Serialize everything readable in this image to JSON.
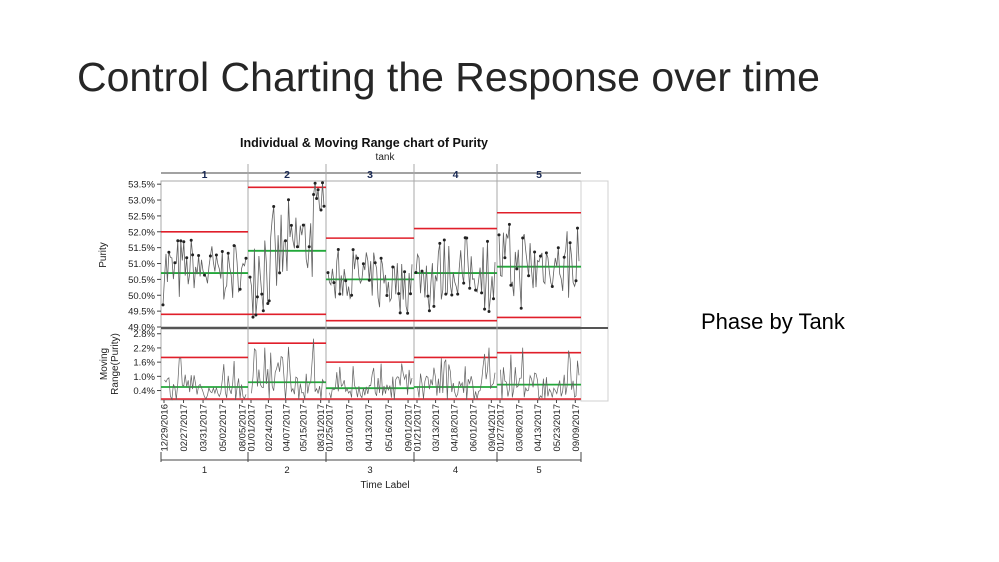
{
  "slide": {
    "title": "Control Charting the Response over time",
    "note": "Phase by Tank"
  },
  "colors": {
    "limit": "#e01f2a",
    "center": "#22a83a",
    "series": "#606060",
    "point": "#222222",
    "frame": "#a8a8a8"
  },
  "chart_data": {
    "type": "line",
    "title": "Individual & Moving Range chart of Purity",
    "phase_title": "tank",
    "xlabel": "Time Label",
    "phases": [
      {
        "label": "1",
        "ucl": 52.0,
        "cl": 50.7,
        "lcl": 49.4,
        "mr_ucl": 1.8,
        "mr_cl": 0.55,
        "start": 50.8,
        "end": 50.7
      },
      {
        "label": "2",
        "ucl": 53.4,
        "cl": 51.4,
        "lcl": 49.4,
        "mr_ucl": 2.4,
        "mr_cl": 0.75,
        "start": 51.0,
        "end": 52.5
      },
      {
        "label": "3",
        "ucl": 51.8,
        "cl": 50.5,
        "lcl": 49.2,
        "mr_ucl": 1.6,
        "mr_cl": 0.5,
        "start": 50.5,
        "end": 50.5
      },
      {
        "label": "4",
        "ucl": 52.1,
        "cl": 50.7,
        "lcl": 49.2,
        "mr_ucl": 1.8,
        "mr_cl": 0.55,
        "start": 50.6,
        "end": 50.7
      },
      {
        "label": "5",
        "ucl": 52.6,
        "cl": 50.9,
        "lcl": 49.3,
        "mr_ucl": 2.0,
        "mr_cl": 0.65,
        "start": 50.9,
        "end": 51.0
      }
    ],
    "individuals": {
      "ylabel": "Purity",
      "ylim": [
        49.0,
        53.6
      ],
      "ticks": [
        "53.5%",
        "53.0%",
        "52.5%",
        "52.0%",
        "51.5%",
        "51.0%",
        "50.5%",
        "50.0%",
        "49.5%",
        "49.0%"
      ],
      "tick_values": [
        53.5,
        53.0,
        52.5,
        52.0,
        51.5,
        51.0,
        50.5,
        50.0,
        49.5,
        49.0
      ]
    },
    "moving_range": {
      "ylabel": "Moving Range(Purity)",
      "ylim": [
        0.0,
        3.0
      ],
      "ticks": [
        "2.8%",
        "2.2%",
        "1.6%",
        "1.0%",
        "0.4%"
      ],
      "tick_values": [
        2.8,
        2.2,
        1.6,
        1.0,
        0.4
      ]
    },
    "x_ticks": [
      "12/29/2016",
      "02/27/2017",
      "03/31/2017",
      "05/02/2017",
      "08/05/2017",
      "01/01/2017",
      "02/24/2017",
      "04/07/2017",
      "05/15/2017",
      "08/31/2017",
      "01/25/2017",
      "03/10/2017",
      "04/13/2017",
      "05/16/2017",
      "09/01/2017",
      "01/21/2017",
      "03/13/2017",
      "04/18/2017",
      "06/01/2017",
      "09/04/2017",
      "01/27/2017",
      "03/08/2017",
      "04/13/2017",
      "05/23/2017",
      "09/09/2017"
    ],
    "x_phase_labels": [
      "1",
      "2",
      "3",
      "4",
      "5"
    ]
  }
}
